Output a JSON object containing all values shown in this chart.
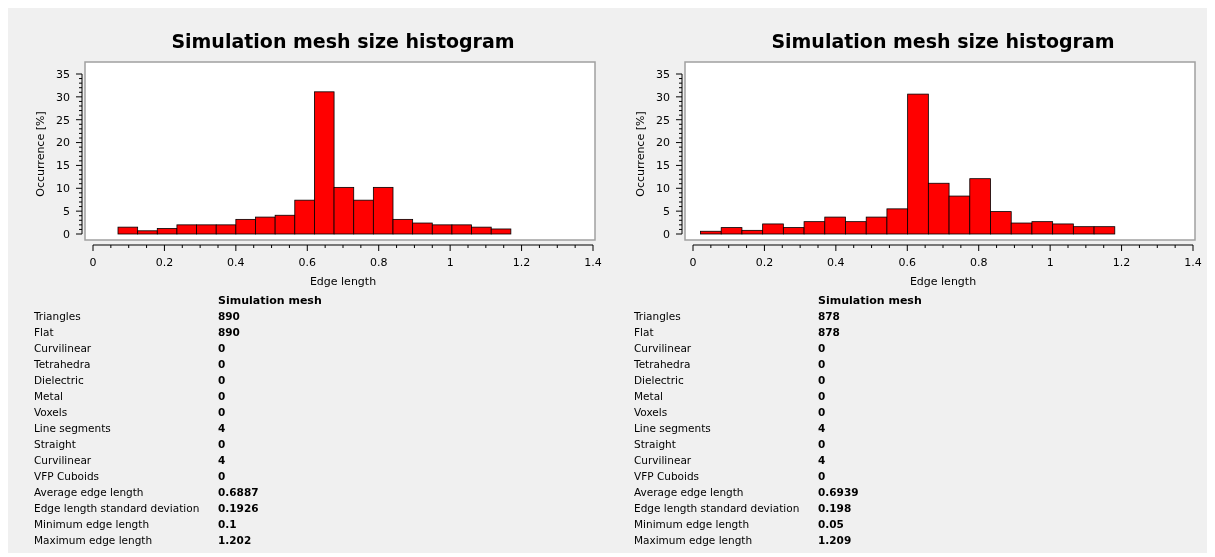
{
  "chart_data": [
    {
      "type": "histogram",
      "title": "Simulation mesh size histogram",
      "xlabel": "Edge length",
      "ylabel": "Occurrence [%]",
      "color": "#ff0000",
      "bins": [
        0.07,
        0.125,
        0.18,
        0.235,
        0.29,
        0.345,
        0.4,
        0.455,
        0.51,
        0.565,
        0.62,
        0.675,
        0.73,
        0.785,
        0.84,
        0.895,
        0.95,
        1.005,
        1.06,
        1.115,
        1.17,
        1.225
      ],
      "values": [
        1.5,
        0.7,
        1.2,
        2.0,
        2.0,
        2.0,
        3.2,
        3.7,
        4.1,
        7.4,
        31.1,
        10.2,
        7.4,
        10.2,
        3.2,
        2.4,
        2.0,
        2.0,
        1.5,
        1.1,
        0
      ],
      "xlim": [
        0,
        1.4
      ],
      "xticks": [
        0,
        0.2,
        0.4,
        0.6,
        0.8,
        1,
        1.2,
        1.4
      ],
      "ylim": [
        0,
        35
      ],
      "yticks": [
        0,
        5,
        10,
        15,
        20,
        25,
        30,
        35
      ],
      "grid": false,
      "annotations": [
        "Simulation mesh",
        "Triangles",
        "890",
        "Flat",
        "890",
        "Curvilinear",
        "0",
        "Tetrahedra",
        "0",
        "Dielectric",
        "0",
        "Metal",
        "0",
        "Voxels",
        "0",
        "Line segments",
        "4",
        "Straight",
        "0",
        "Curvilinear",
        "4",
        "VFP Cuboids",
        "0",
        "Average edge length",
        "0.6887",
        "Edge length standard deviation",
        "0.1926",
        "Minimum edge length",
        "0.1",
        "Maximum edge length",
        "1.202"
      ]
    },
    {
      "type": "histogram",
      "title": "Simulation mesh size histogram",
      "xlabel": "Edge length",
      "ylabel": "Occurrence [%]",
      "color": "#ff0000",
      "bins": [
        0.021,
        0.079,
        0.137,
        0.195,
        0.253,
        0.311,
        0.369,
        0.427,
        0.485,
        0.543,
        0.601,
        0.659,
        0.717,
        0.775,
        0.833,
        0.891,
        0.949,
        1.007,
        1.065,
        1.123,
        1.181,
        1.239
      ],
      "values": [
        0.6,
        1.4,
        0.8,
        2.2,
        1.4,
        2.7,
        3.7,
        2.7,
        3.7,
        5.5,
        30.6,
        11.1,
        8.3,
        12.1,
        4.9,
        2.4,
        2.7,
        2.2,
        1.6,
        1.6,
        0
      ],
      "xlim": [
        0,
        1.4
      ],
      "xticks": [
        0,
        0.2,
        0.4,
        0.6,
        0.8,
        1,
        1.2,
        1.4
      ],
      "ylim": [
        0,
        35
      ],
      "yticks": [
        0,
        5,
        10,
        15,
        20,
        25,
        30,
        35
      ],
      "grid": false,
      "annotations": [
        "Simulation mesh",
        "Triangles",
        "878",
        "Flat",
        "878",
        "Curvilinear",
        "0",
        "Tetrahedra",
        "0",
        "Dielectric",
        "0",
        "Metal",
        "0",
        "Voxels",
        "0",
        "Line segments",
        "4",
        "Straight",
        "0",
        "Curvilinear",
        "4",
        "VFP Cuboids",
        "0",
        "Average edge length",
        "0.6939",
        "Edge length standard deviation",
        "0.198",
        "Minimum edge length",
        "0.05",
        "Maximum edge length",
        "1.209"
      ]
    }
  ]
}
